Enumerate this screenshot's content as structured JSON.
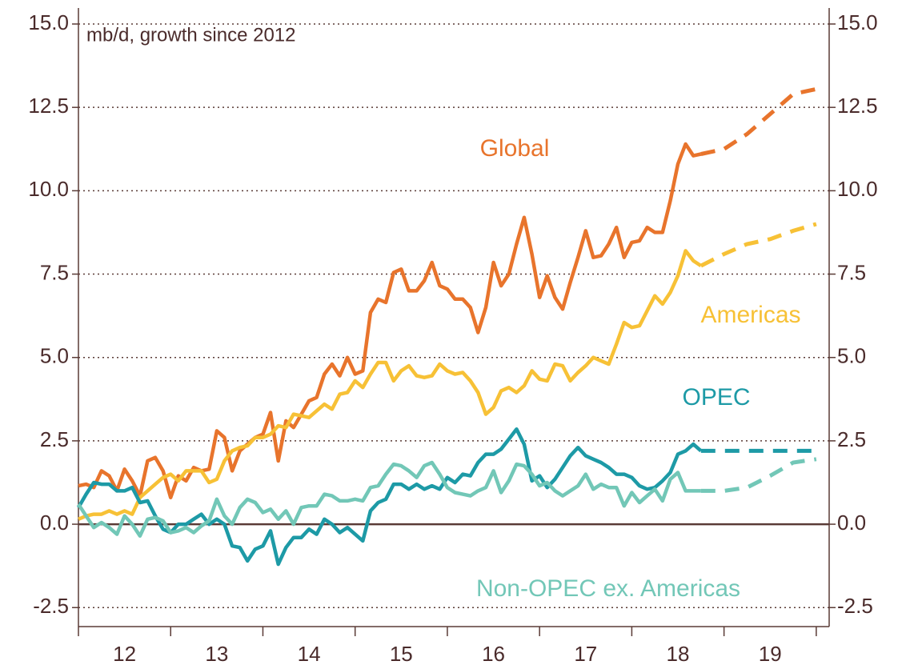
{
  "chart_data": {
    "type": "line",
    "subtitle": "mb/d, growth since 2012",
    "xlim": [
      2012,
      2020.14
    ],
    "ylim": [
      -3.07,
      15.48
    ],
    "xticks": [
      2012,
      2013,
      2014,
      2015,
      2016,
      2017,
      2018,
      2019,
      2020
    ],
    "xlabels": [
      {
        "value": 2012.5,
        "label": "12"
      },
      {
        "value": 2013.5,
        "label": "13"
      },
      {
        "value": 2014.5,
        "label": "14"
      },
      {
        "value": 2015.5,
        "label": "15"
      },
      {
        "value": 2016.5,
        "label": "16"
      },
      {
        "value": 2017.5,
        "label": "17"
      },
      {
        "value": 2018.5,
        "label": "18"
      },
      {
        "value": 2019.5,
        "label": "19"
      }
    ],
    "yticks": [
      {
        "value": -2.5,
        "label": "-2.5"
      },
      {
        "value": 0,
        "label": "0.0"
      },
      {
        "value": 2.5,
        "label": "2.5"
      },
      {
        "value": 5,
        "label": "5.0"
      },
      {
        "value": 7.5,
        "label": "7.5"
      },
      {
        "value": 10,
        "label": "10.0"
      },
      {
        "value": 12.5,
        "label": "12.5"
      },
      {
        "value": 15,
        "label": "15.0"
      }
    ],
    "grid": true,
    "x": [
      2012,
      2012.083,
      2012.167,
      2012.25,
      2012.333,
      2012.417,
      2012.5,
      2012.583,
      2012.667,
      2012.75,
      2012.833,
      2012.917,
      2013,
      2013.083,
      2013.167,
      2013.25,
      2013.333,
      2013.417,
      2013.5,
      2013.583,
      2013.667,
      2013.75,
      2013.833,
      2013.917,
      2014,
      2014.083,
      2014.167,
      2014.25,
      2014.333,
      2014.417,
      2014.5,
      2014.583,
      2014.667,
      2014.75,
      2014.833,
      2014.917,
      2015,
      2015.083,
      2015.167,
      2015.25,
      2015.333,
      2015.417,
      2015.5,
      2015.583,
      2015.667,
      2015.75,
      2015.833,
      2015.917,
      2016,
      2016.083,
      2016.167,
      2016.25,
      2016.333,
      2016.417,
      2016.5,
      2016.583,
      2016.667,
      2016.75,
      2016.833,
      2016.917,
      2017,
      2017.083,
      2017.167,
      2017.25,
      2017.333,
      2017.417,
      2017.5,
      2017.583,
      2017.667,
      2017.75,
      2017.833,
      2017.917,
      2018,
      2018.083,
      2018.167,
      2018.25,
      2018.333,
      2018.417,
      2018.5,
      2018.583,
      2018.667,
      2018.75
    ],
    "forecast_x": [
      2018.75,
      2019,
      2019.25,
      2019.5,
      2019.75,
      2020
    ],
    "series": [
      {
        "name": "Global",
        "color": "#e8742c",
        "values": [
          1.15,
          1.2,
          1.1,
          1.6,
          1.45,
          1.0,
          1.65,
          1.3,
          0.85,
          1.9,
          2.0,
          1.6,
          0.8,
          1.45,
          1.3,
          1.7,
          1.6,
          1.65,
          2.8,
          2.6,
          1.6,
          2.2,
          2.4,
          2.6,
          2.7,
          3.35,
          1.9,
          3.1,
          2.9,
          3.3,
          3.7,
          3.8,
          4.5,
          4.8,
          4.45,
          5.0,
          4.5,
          4.6,
          6.35,
          6.75,
          6.65,
          7.55,
          7.65,
          7.0,
          7.0,
          7.3,
          7.85,
          7.15,
          7.05,
          6.75,
          6.75,
          6.5,
          5.75,
          6.5,
          7.85,
          7.15,
          7.5,
          8.4,
          9.2,
          8.1,
          6.8,
          7.45,
          6.8,
          6.45,
          7.25,
          8.0,
          8.8,
          8.0,
          8.05,
          8.4,
          8.9,
          8.0,
          8.45,
          8.5,
          8.9,
          8.75,
          8.75,
          9.7,
          10.8,
          11.4,
          11.05,
          11.1
        ],
        "forecast": [
          11.1,
          11.25,
          11.7,
          12.3,
          12.9,
          13.05
        ]
      },
      {
        "name": "Americas",
        "color": "#f7c136",
        "values": [
          0.15,
          0.25,
          0.3,
          0.3,
          0.4,
          0.3,
          0.4,
          0.3,
          0.8,
          1.0,
          1.2,
          1.4,
          1.5,
          1.3,
          1.6,
          1.6,
          1.6,
          1.25,
          1.35,
          1.9,
          2.2,
          2.3,
          2.35,
          2.6,
          2.6,
          2.7,
          2.95,
          2.9,
          3.3,
          3.25,
          3.2,
          3.4,
          3.6,
          3.45,
          3.9,
          3.95,
          4.3,
          4.1,
          4.5,
          4.85,
          4.85,
          4.3,
          4.6,
          4.75,
          4.45,
          4.4,
          4.45,
          4.8,
          4.6,
          4.5,
          4.55,
          4.3,
          3.95,
          3.3,
          3.5,
          4.0,
          4.1,
          3.95,
          4.15,
          4.6,
          4.35,
          4.3,
          4.8,
          4.75,
          4.3,
          4.55,
          4.75,
          5.0,
          4.9,
          4.8,
          5.4,
          6.05,
          5.9,
          5.95,
          6.4,
          6.85,
          6.6,
          6.95,
          7.45,
          8.2,
          7.9,
          7.75
        ],
        "forecast": [
          7.75,
          8.1,
          8.4,
          8.55,
          8.8,
          9.0
        ]
      },
      {
        "name": "OPEC",
        "color": "#1d9aa6",
        "values": [
          0.5,
          0.9,
          1.25,
          1.2,
          1.2,
          1.0,
          1.0,
          1.1,
          0.65,
          0.7,
          0.25,
          -0.15,
          -0.25,
          0.0,
          0.0,
          0.15,
          0.3,
          0.0,
          0.15,
          0.0,
          -0.65,
          -0.7,
          -1.1,
          -0.75,
          -0.65,
          -0.2,
          -1.2,
          -0.7,
          -0.4,
          -0.4,
          -0.15,
          -0.3,
          0.15,
          0.0,
          -0.25,
          -0.1,
          -0.3,
          -0.5,
          0.4,
          0.65,
          0.75,
          1.2,
          1.2,
          1.05,
          1.2,
          1.05,
          1.15,
          1.05,
          1.4,
          1.25,
          1.5,
          1.45,
          1.85,
          2.1,
          2.1,
          2.25,
          2.55,
          2.85,
          2.4,
          1.3,
          1.45,
          1.1,
          1.35,
          1.7,
          2.05,
          2.3,
          2.05,
          1.95,
          1.85,
          1.7,
          1.5,
          1.5,
          1.4,
          1.15,
          1.05,
          1.1,
          1.3,
          1.55,
          2.1,
          2.2,
          2.4,
          2.2
        ],
        "forecast": [
          2.2,
          2.2,
          2.2,
          2.2,
          2.2,
          2.2
        ]
      },
      {
        "name": "Non-OPEC ex. Americas",
        "color": "#72c7b7",
        "values": [
          0.6,
          0.25,
          -0.1,
          0.05,
          -0.1,
          -0.3,
          0.25,
          0.0,
          -0.35,
          0.15,
          0.2,
          0.1,
          -0.25,
          -0.2,
          -0.1,
          -0.25,
          -0.05,
          0.1,
          0.75,
          0.25,
          0.0,
          0.5,
          0.75,
          0.65,
          0.35,
          0.45,
          0.15,
          0.4,
          0.0,
          0.5,
          0.55,
          0.55,
          0.9,
          0.85,
          0.7,
          0.7,
          0.75,
          0.7,
          1.1,
          1.15,
          1.5,
          1.8,
          1.75,
          1.6,
          1.4,
          1.75,
          1.85,
          1.5,
          1.1,
          0.95,
          0.9,
          0.85,
          1.0,
          1.1,
          1.6,
          0.95,
          1.3,
          1.8,
          1.75,
          1.5,
          1.15,
          1.25,
          1.0,
          0.85,
          1.0,
          1.15,
          1.5,
          1.05,
          1.2,
          1.1,
          1.1,
          0.55,
          0.95,
          0.65,
          0.85,
          1.05,
          0.7,
          1.35,
          1.55,
          1.0,
          1.0,
          1.0
        ],
        "forecast": [
          1.0,
          1.0,
          1.1,
          1.45,
          1.85,
          1.95
        ]
      }
    ]
  }
}
